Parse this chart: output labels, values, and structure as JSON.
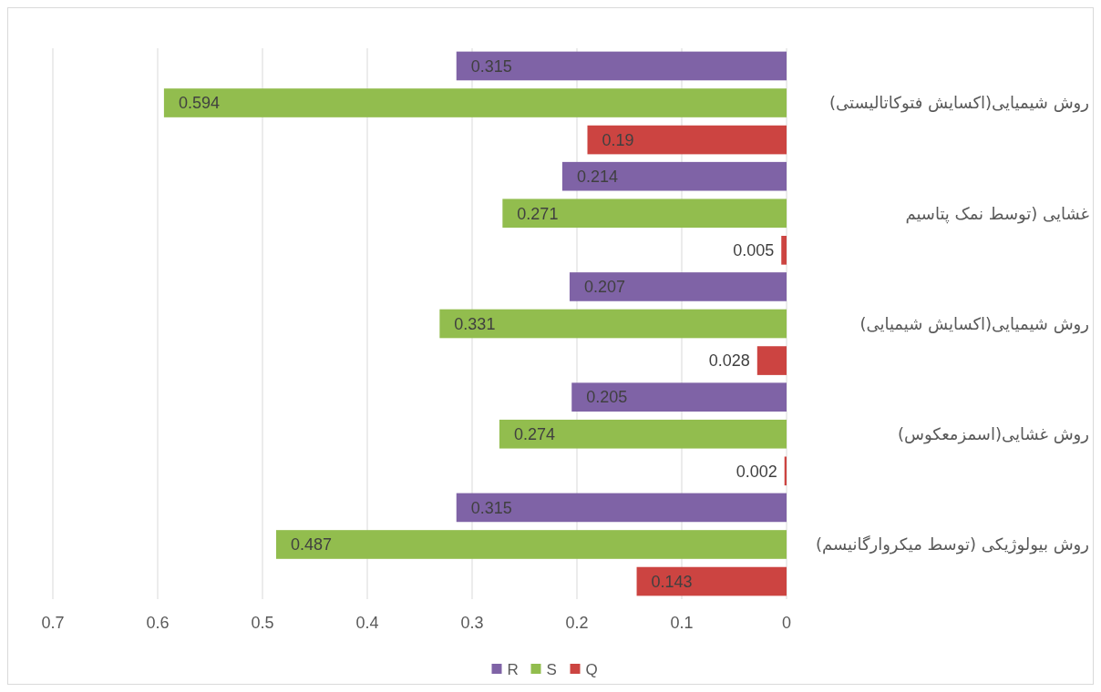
{
  "chart_data": {
    "type": "bar",
    "orientation": "horizontal",
    "categories": [
      "روش شیمیایی(اکسایش فتوکاتالیستی)",
      "غشایی (توسط نمک پتاسیم",
      "روش شیمیایی(اکسایش شیمیایی)",
      "روش غشایی(اسمزمعکوس)",
      "روش بیولوژیکی (توسط میکروارگانیسم)"
    ],
    "series": [
      {
        "name": "R",
        "color": "#7f63a6",
        "values": [
          0.315,
          0.214,
          0.207,
          0.205,
          0.315
        ]
      },
      {
        "name": "S",
        "color": "#92bd4e",
        "values": [
          0.594,
          0.271,
          0.331,
          0.274,
          0.487
        ]
      },
      {
        "name": "Q",
        "color": "#cc4441",
        "values": [
          0.19,
          0.005,
          0.028,
          0.002,
          0.143
        ]
      }
    ],
    "xlim": [
      0.7,
      0
    ],
    "xticks": [
      0.7,
      0.6,
      0.5,
      0.4,
      0.3,
      0.2,
      0.1,
      0
    ],
    "grid": "x",
    "legend": "bottom",
    "data_labels": true
  }
}
